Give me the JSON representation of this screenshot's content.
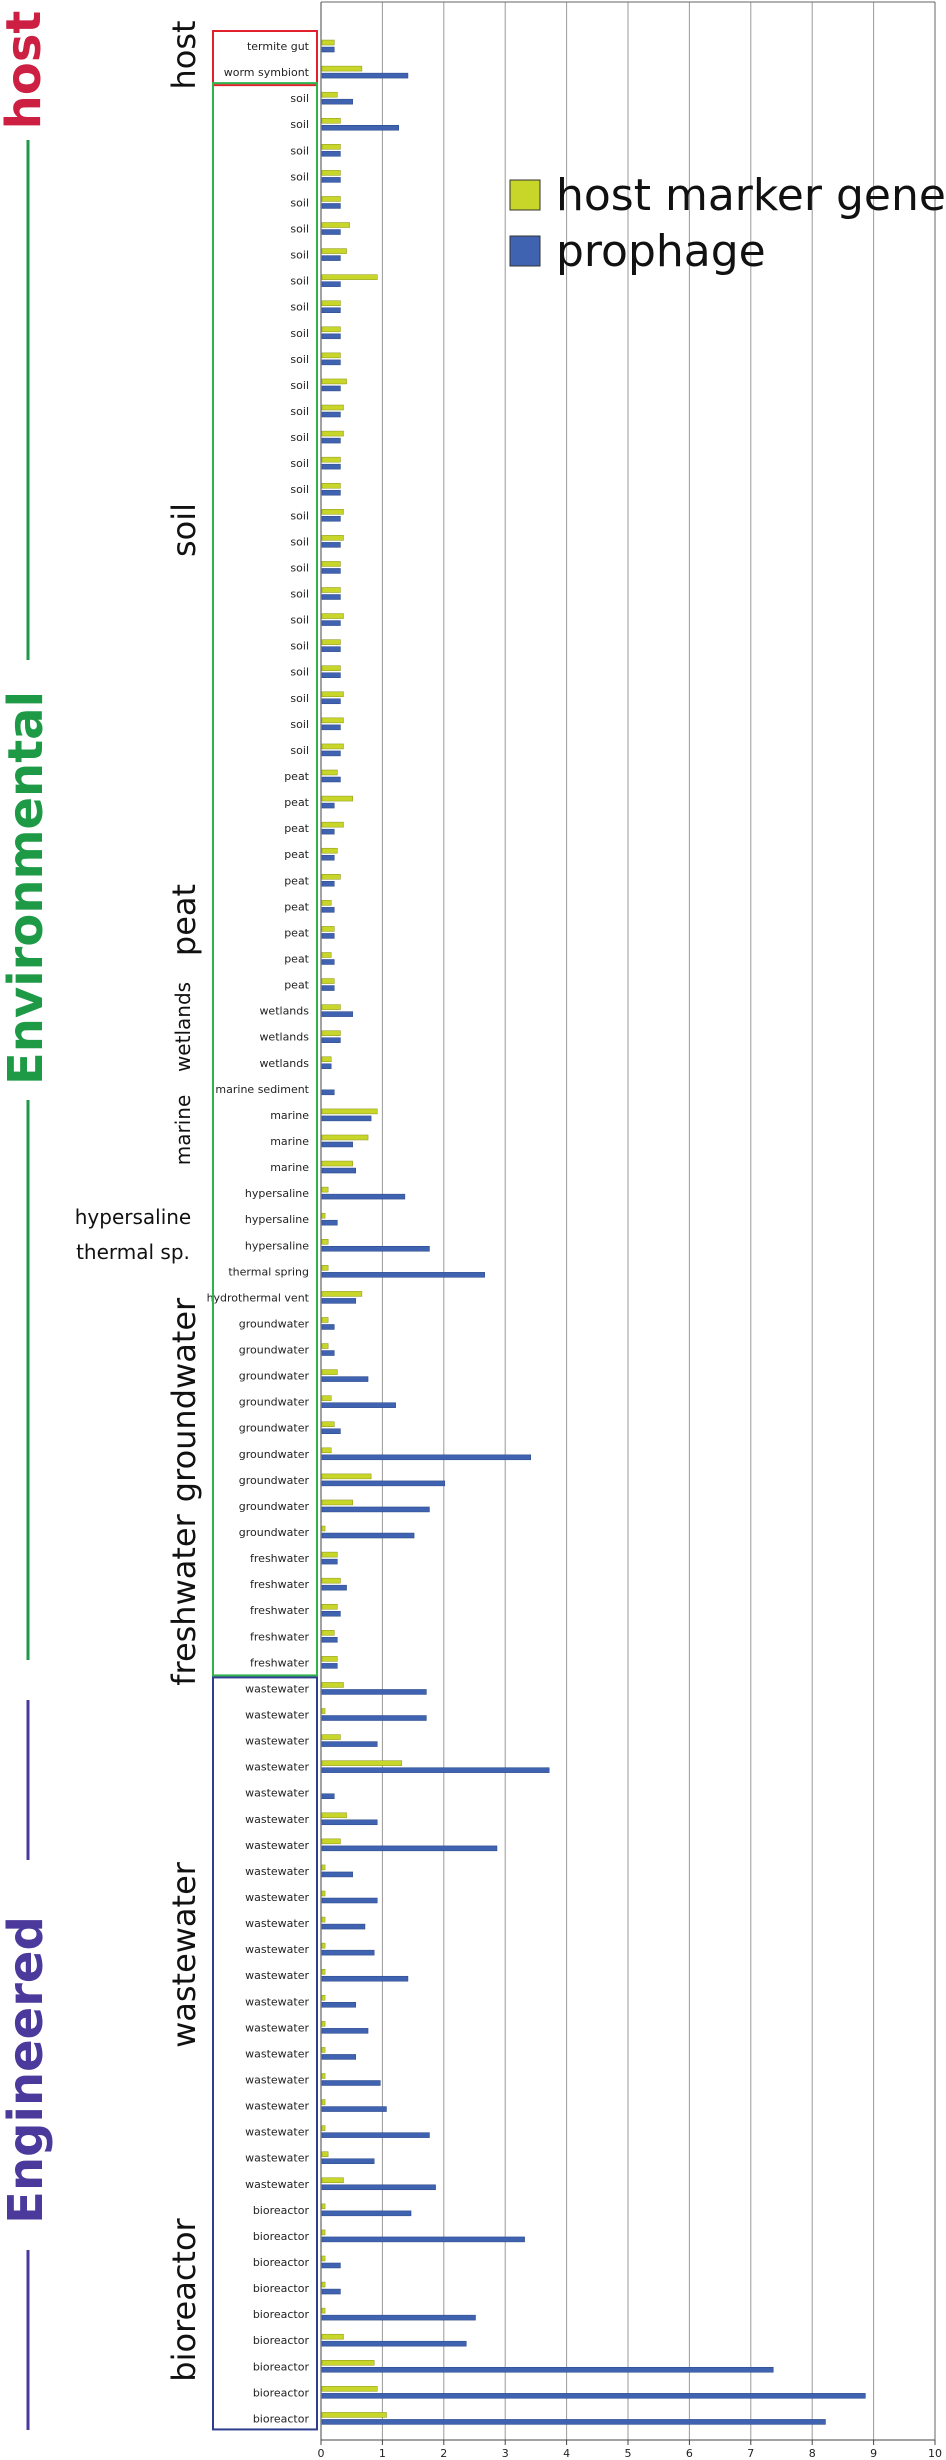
{
  "chart_data": {
    "type": "bar",
    "orientation": "horizontal",
    "title": "",
    "xlabel": "",
    "ylabel": "",
    "xlim": [
      0,
      10
    ],
    "x_ticks": [
      0,
      1,
      2,
      3,
      4,
      5,
      6,
      7,
      8,
      9,
      10
    ],
    "grid": true,
    "legend_position": "top-right",
    "series": [
      {
        "name": "host marker genes",
        "color": "#c8d62a"
      },
      {
        "name": "prophage",
        "color": "#3f63b0"
      }
    ],
    "categories": [
      "termite gut",
      "worm symbiont",
      "soil",
      "soil",
      "soil",
      "soil",
      "soil",
      "soil",
      "soil",
      "soil",
      "soil",
      "soil",
      "soil",
      "soil",
      "soil",
      "soil",
      "soil",
      "soil",
      "soil",
      "soil",
      "soil",
      "soil",
      "soil",
      "soil",
      "soil",
      "soil",
      "soil",
      "soil",
      "peat",
      "peat",
      "peat",
      "peat",
      "peat",
      "peat",
      "peat",
      "peat",
      "peat",
      "wetlands",
      "wetlands",
      "wetlands",
      "marine sediment",
      "marine",
      "marine",
      "marine",
      "hypersaline",
      "hypersaline",
      "hypersaline",
      "thermal spring",
      "hydrothermal vent",
      "groundwater",
      "groundwater",
      "groundwater",
      "groundwater",
      "groundwater",
      "groundwater",
      "groundwater",
      "groundwater",
      "groundwater",
      "freshwater",
      "freshwater",
      "freshwater",
      "freshwater",
      "freshwater",
      "wastewater",
      "wastewater",
      "wastewater",
      "wastewater",
      "wastewater",
      "wastewater",
      "wastewater",
      "wastewater",
      "wastewater",
      "wastewater",
      "wastewater",
      "wastewater",
      "wastewater",
      "wastewater",
      "wastewater",
      "wastewater",
      "wastewater",
      "wastewater",
      "wastewater",
      "wastewater",
      "bioreactor",
      "bioreactor",
      "bioreactor",
      "bioreactor",
      "bioreactor",
      "bioreactor",
      "bioreactor",
      "bioreactor",
      "bioreactor"
    ],
    "host_values": [
      0.2,
      0.65,
      0.25,
      0.3,
      0.3,
      0.3,
      0.3,
      0.45,
      0.4,
      0.9,
      0.3,
      0.3,
      0.3,
      0.4,
      0.35,
      0.35,
      0.3,
      0.3,
      0.35,
      0.35,
      0.3,
      0.3,
      0.35,
      0.3,
      0.3,
      0.35,
      0.35,
      0.35,
      0.25,
      0.5,
      0.35,
      0.25,
      0.3,
      0.15,
      0.2,
      0.15,
      0.2,
      0.3,
      0.3,
      0.15,
      0.0,
      0.9,
      0.75,
      0.5,
      0.1,
      0.05,
      0.1,
      0.1,
      0.65,
      0.1,
      0.1,
      0.25,
      0.15,
      0.2,
      0.15,
      0.8,
      0.5,
      0.05,
      0.25,
      0.3,
      0.25,
      0.2,
      0.25,
      0.35,
      0.05,
      0.3,
      1.3,
      0.0,
      0.4,
      0.3,
      0.05,
      0.05,
      0.05,
      0.05,
      0.05,
      0.05,
      0.05,
      0.05,
      0.05,
      0.05,
      0.05,
      0.1,
      0.35,
      0.05,
      0.05,
      0.05,
      0.05,
      0.05,
      0.35,
      0.85,
      0.9,
      1.05
    ],
    "prophage_values": [
      0.2,
      1.4,
      0.5,
      1.25,
      0.3,
      0.3,
      0.3,
      0.3,
      0.3,
      0.3,
      0.3,
      0.3,
      0.3,
      0.3,
      0.3,
      0.3,
      0.3,
      0.3,
      0.3,
      0.3,
      0.3,
      0.3,
      0.3,
      0.3,
      0.3,
      0.3,
      0.3,
      0.3,
      0.3,
      0.2,
      0.2,
      0.2,
      0.2,
      0.2,
      0.2,
      0.2,
      0.2,
      0.5,
      0.3,
      0.15,
      0.2,
      0.8,
      0.5,
      0.55,
      1.35,
      0.25,
      1.75,
      2.65,
      0.55,
      0.2,
      0.2,
      0.75,
      1.2,
      0.3,
      3.4,
      2.0,
      1.75,
      1.5,
      0.25,
      0.4,
      0.3,
      0.25,
      0.25,
      1.7,
      1.7,
      0.9,
      3.7,
      0.2,
      0.9,
      2.85,
      0.5,
      0.9,
      0.7,
      0.85,
      1.4,
      0.55,
      0.75,
      0.55,
      0.95,
      1.05,
      1.75,
      0.85,
      1.85,
      1.45,
      3.3,
      0.3,
      0.3,
      2.5,
      2.35,
      7.35,
      8.85,
      8.2
    ],
    "group_labels": {
      "host": "host",
      "soil": "soil",
      "peat": "peat",
      "wetlands": "wetlands",
      "marine": "marine",
      "hypersaline": "hypersaline",
      "thermal": "thermal sp.",
      "groundwater": "groundwater",
      "freshwater": "freshwater",
      "wastewater": "wastewater",
      "bioreactor": "bioreactor"
    },
    "super_groups": {
      "host": "host",
      "environmental": "Environmental",
      "engineered": "Engineered"
    }
  },
  "colors": {
    "host_red": "#cc1f42",
    "env_green": "#1e9a47",
    "eng_purple": "#4b3a9c",
    "box_red": "#e0202a",
    "box_green": "#2eb34c",
    "box_blue": "#2e3e8e",
    "grid": "#9a9a9a"
  }
}
